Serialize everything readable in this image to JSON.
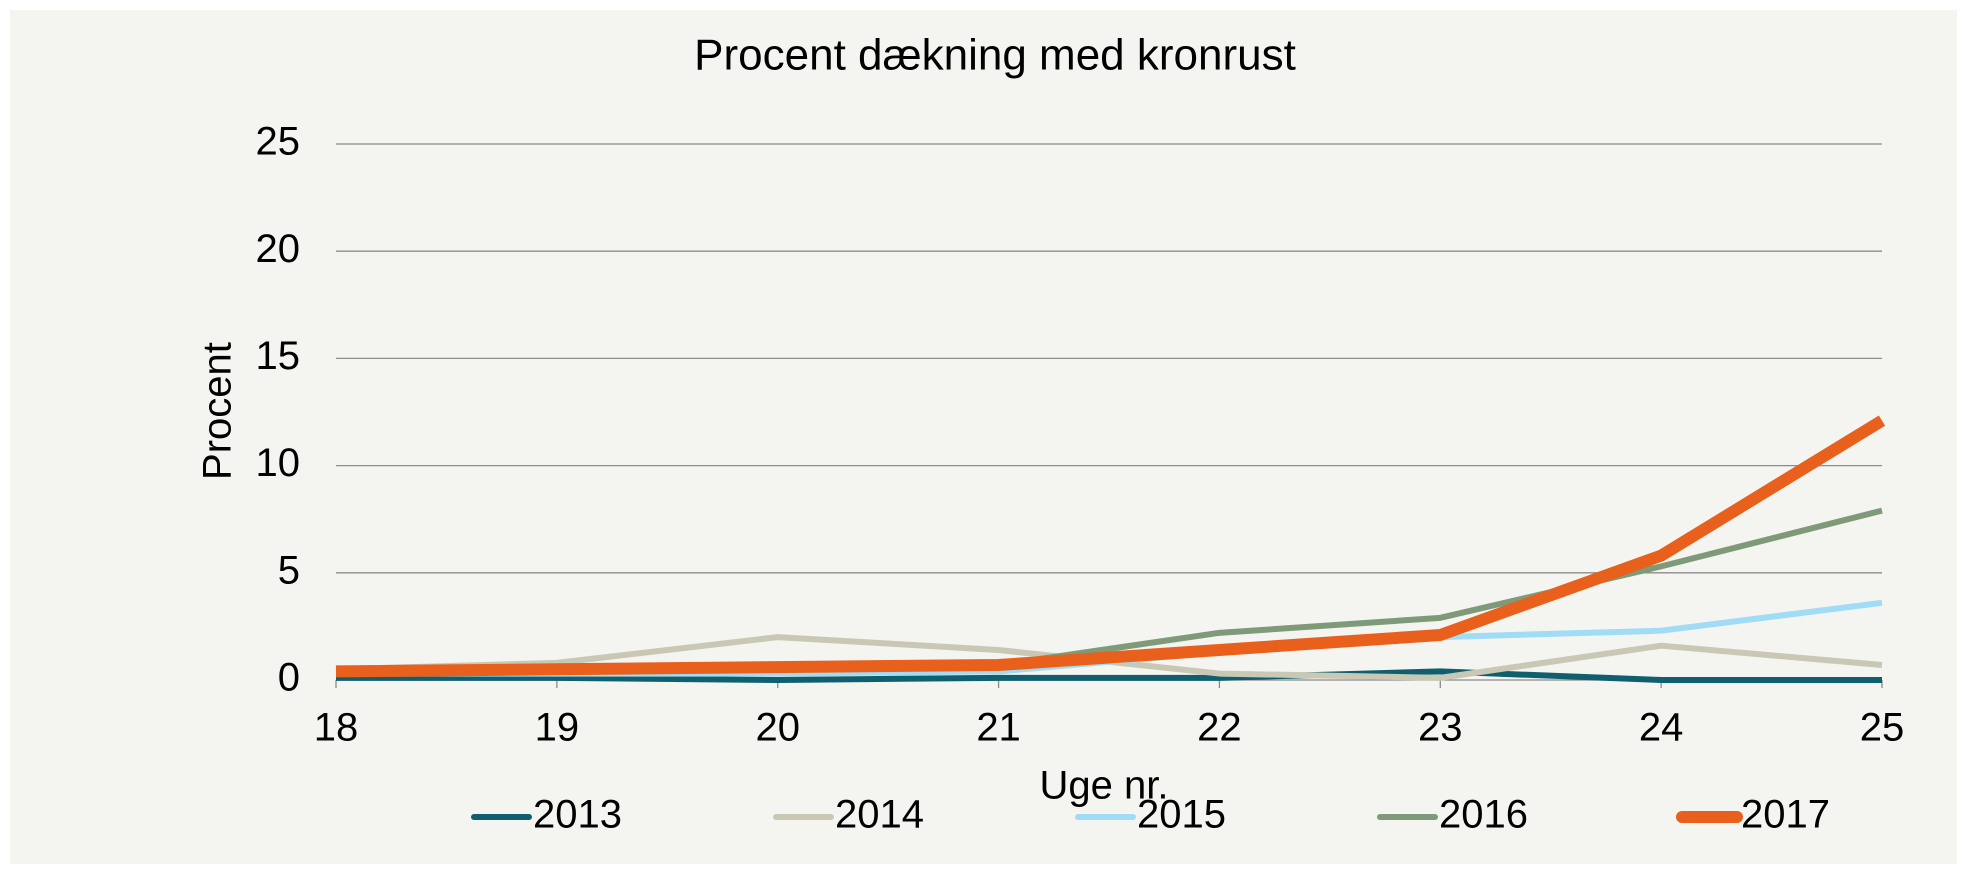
{
  "chart_data": {
    "type": "line",
    "title": "Procent dækning med kronrust",
    "x_label": "Uge nr.",
    "y_label": "Procent",
    "x": [
      18,
      19,
      20,
      21,
      22,
      23,
      24,
      25
    ],
    "series": [
      {
        "name": "2013",
        "color": "#0f5f6e",
        "values": [
          0.1,
          0.1,
          0,
          0.1,
          0.1,
          0.4,
          0,
          0
        ]
      },
      {
        "name": "2014",
        "color": "#c9c8b4",
        "values": [
          0.5,
          0.8,
          2.0,
          1.4,
          0.3,
          0.1,
          1.6,
          0.7
        ]
      },
      {
        "name": "2015",
        "color": "#a0dcf6",
        "values": [
          0.3,
          0.3,
          0.3,
          0.4,
          1.3,
          2.0,
          2.3,
          3.6
        ]
      },
      {
        "name": "2016",
        "color": "#7e9a78",
        "values": [
          0.4,
          0.5,
          0.6,
          0.7,
          2.2,
          2.9,
          5.3,
          7.9
        ]
      },
      {
        "name": "2017",
        "color": "#e8601c",
        "values": [
          0.4,
          0.5,
          0.6,
          0.7,
          1.4,
          2.1,
          5.8,
          12.1
        ]
      }
    ],
    "xlim": [
      18,
      25
    ],
    "xticks": [
      18,
      19,
      20,
      21,
      22,
      23,
      24,
      25
    ],
    "ylim": [
      0,
      25
    ],
    "yticks": [
      0,
      5,
      10,
      15,
      20,
      25
    ],
    "grid": true,
    "legend": "bottom"
  }
}
